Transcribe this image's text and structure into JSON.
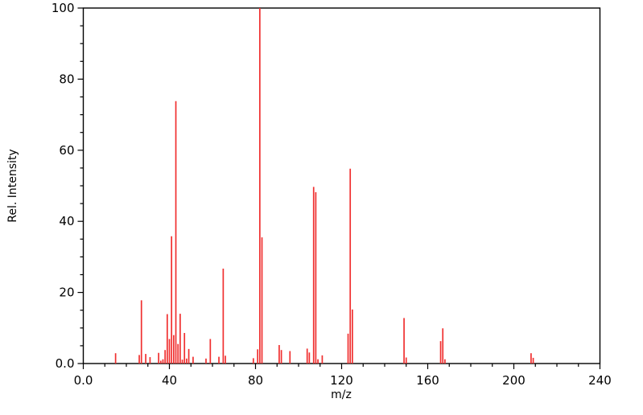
{
  "figure": {
    "background_color": "#ffffff",
    "frame_color": "#000000"
  },
  "chart_data": {
    "type": "bar",
    "subtype": "mass-spectrum-stick-plot",
    "title": "",
    "xlabel": "m/z",
    "ylabel": "Rel. Intensity",
    "xlim": [
      0,
      240
    ],
    "ylim": [
      0,
      100
    ],
    "grid": false,
    "legend": "none",
    "line_color": "#f03030",
    "x_axis": {
      "label": "m/z",
      "minor_step": 10,
      "major_ticks": [
        {
          "value": 0,
          "label": "0.0"
        },
        {
          "value": 40,
          "label": "40"
        },
        {
          "value": 80,
          "label": "80"
        },
        {
          "value": 120,
          "label": "120"
        },
        {
          "value": 160,
          "label": "160"
        },
        {
          "value": 200,
          "label": "200"
        },
        {
          "value": 240,
          "label": "240"
        }
      ]
    },
    "y_axis": {
      "label": "Rel. Intensity",
      "minor_step": 5,
      "major_ticks": [
        {
          "value": 0,
          "label": "0.0"
        },
        {
          "value": 20,
          "label": "20"
        },
        {
          "value": 40,
          "label": "40"
        },
        {
          "value": 60,
          "label": "60"
        },
        {
          "value": 80,
          "label": "80"
        },
        {
          "value": 100,
          "label": "100"
        }
      ]
    },
    "series": [
      {
        "name": "relative-intensity",
        "points": [
          {
            "mz": 15,
            "intensity": 2.9
          },
          {
            "mz": 26,
            "intensity": 2.4
          },
          {
            "mz": 27,
            "intensity": 17.8
          },
          {
            "mz": 29,
            "intensity": 2.7
          },
          {
            "mz": 31,
            "intensity": 1.8
          },
          {
            "mz": 35,
            "intensity": 3.0
          },
          {
            "mz": 36,
            "intensity": 0.8
          },
          {
            "mz": 37,
            "intensity": 1.2
          },
          {
            "mz": 38,
            "intensity": 3.8
          },
          {
            "mz": 39,
            "intensity": 13.9
          },
          {
            "mz": 40,
            "intensity": 6.9
          },
          {
            "mz": 41,
            "intensity": 35.8
          },
          {
            "mz": 42,
            "intensity": 8.0
          },
          {
            "mz": 43,
            "intensity": 73.8
          },
          {
            "mz": 44,
            "intensity": 5.5
          },
          {
            "mz": 45,
            "intensity": 14.0
          },
          {
            "mz": 46,
            "intensity": 1.1
          },
          {
            "mz": 47,
            "intensity": 8.6
          },
          {
            "mz": 48,
            "intensity": 1.4
          },
          {
            "mz": 49,
            "intensity": 4.1
          },
          {
            "mz": 51,
            "intensity": 1.9
          },
          {
            "mz": 57,
            "intensity": 1.4
          },
          {
            "mz": 59,
            "intensity": 6.9
          },
          {
            "mz": 63,
            "intensity": 1.9
          },
          {
            "mz": 65,
            "intensity": 26.7
          },
          {
            "mz": 66,
            "intensity": 2.2
          },
          {
            "mz": 79,
            "intensity": 1.5
          },
          {
            "mz": 81,
            "intensity": 4.0
          },
          {
            "mz": 82,
            "intensity": 100.0
          },
          {
            "mz": 83,
            "intensity": 35.5
          },
          {
            "mz": 91,
            "intensity": 5.2
          },
          {
            "mz": 92,
            "intensity": 3.8
          },
          {
            "mz": 96,
            "intensity": 3.5
          },
          {
            "mz": 104,
            "intensity": 4.2
          },
          {
            "mz": 105,
            "intensity": 3.1
          },
          {
            "mz": 107,
            "intensity": 49.7
          },
          {
            "mz": 108,
            "intensity": 48.2
          },
          {
            "mz": 109,
            "intensity": 1.2
          },
          {
            "mz": 111,
            "intensity": 2.3
          },
          {
            "mz": 123,
            "intensity": 8.4
          },
          {
            "mz": 124,
            "intensity": 54.8
          },
          {
            "mz": 125,
            "intensity": 15.2
          },
          {
            "mz": 149,
            "intensity": 12.8
          },
          {
            "mz": 150,
            "intensity": 1.7
          },
          {
            "mz": 166,
            "intensity": 6.3
          },
          {
            "mz": 167,
            "intensity": 9.9
          },
          {
            "mz": 168,
            "intensity": 1.2
          },
          {
            "mz": 208,
            "intensity": 2.9
          },
          {
            "mz": 209,
            "intensity": 1.6
          }
        ]
      }
    ]
  }
}
